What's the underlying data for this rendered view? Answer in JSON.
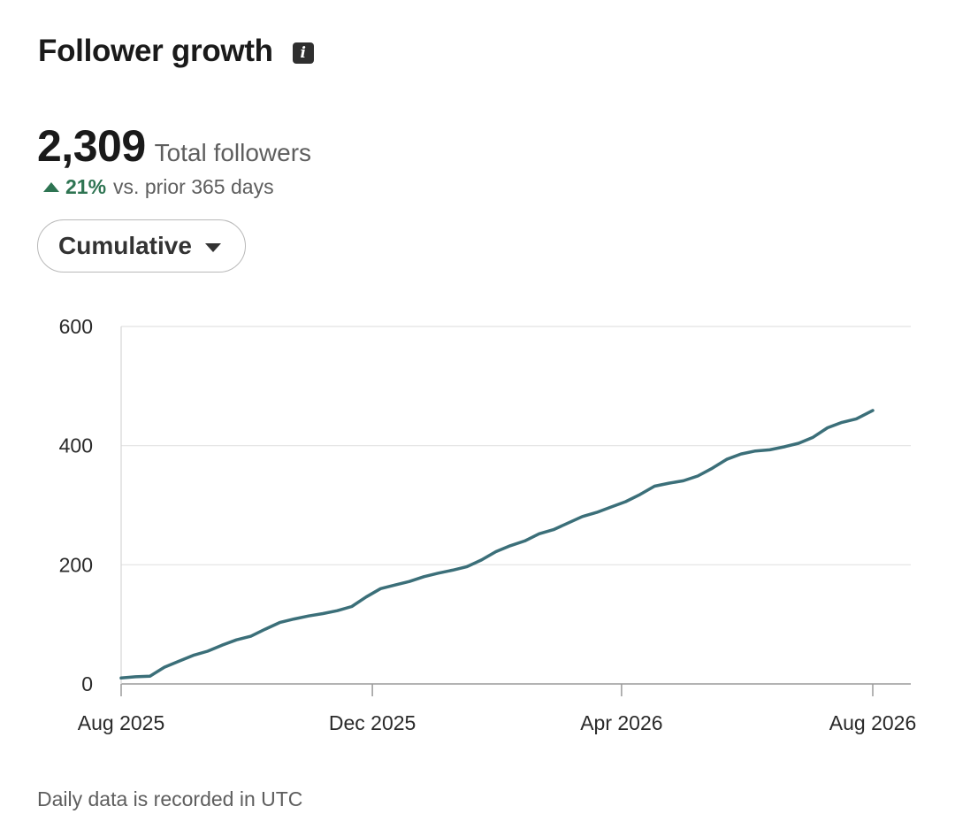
{
  "header": {
    "title": "Follower growth",
    "info_icon": "info-icon"
  },
  "summary": {
    "total": "2,309",
    "total_label": "Total followers",
    "delta_pct": "21%",
    "delta_text": "vs. prior 365 days",
    "delta_color": "#2e7452"
  },
  "view_selector": {
    "label": "Cumulative",
    "icon": "chevron-down-icon"
  },
  "footnote": "Daily data is recorded in UTC",
  "chart_data": {
    "type": "line",
    "title": "",
    "xlabel": "",
    "ylabel": "",
    "ylim": [
      0,
      600
    ],
    "yticks": [
      0,
      200,
      400,
      600
    ],
    "xlim": [
      "2025-08-01",
      "2026-08-01"
    ],
    "xticks": [
      "Aug 2025",
      "Dec 2025",
      "Apr 2026",
      "Aug 2026"
    ],
    "grid": true,
    "line_color": "#3b6f79",
    "series": [
      {
        "values": [
          [
            "2025-08-01",
            10
          ],
          [
            "2025-08-08",
            12
          ],
          [
            "2025-08-15",
            13
          ],
          [
            "2025-08-22",
            28
          ],
          [
            "2025-08-29",
            38
          ],
          [
            "2025-09-05",
            48
          ],
          [
            "2025-09-12",
            55
          ],
          [
            "2025-09-19",
            65
          ],
          [
            "2025-09-26",
            74
          ],
          [
            "2025-10-03",
            80
          ],
          [
            "2025-10-10",
            92
          ],
          [
            "2025-10-17",
            103
          ],
          [
            "2025-10-24",
            109
          ],
          [
            "2025-10-31",
            114
          ],
          [
            "2025-11-07",
            118
          ],
          [
            "2025-11-14",
            123
          ],
          [
            "2025-11-21",
            130
          ],
          [
            "2025-11-28",
            146
          ],
          [
            "2025-12-05",
            160
          ],
          [
            "2025-12-12",
            166
          ],
          [
            "2025-12-19",
            172
          ],
          [
            "2025-12-26",
            180
          ],
          [
            "2026-01-02",
            186
          ],
          [
            "2026-01-09",
            191
          ],
          [
            "2026-01-16",
            197
          ],
          [
            "2026-01-23",
            208
          ],
          [
            "2026-01-30",
            222
          ],
          [
            "2026-02-06",
            232
          ],
          [
            "2026-02-13",
            240
          ],
          [
            "2026-02-20",
            252
          ],
          [
            "2026-02-27",
            259
          ],
          [
            "2026-03-06",
            270
          ],
          [
            "2026-03-13",
            281
          ],
          [
            "2026-03-20",
            288
          ],
          [
            "2026-03-27",
            297
          ],
          [
            "2026-04-03",
            306
          ],
          [
            "2026-04-10",
            318
          ],
          [
            "2026-04-17",
            332
          ],
          [
            "2026-04-24",
            337
          ],
          [
            "2026-05-01",
            341
          ],
          [
            "2026-05-08",
            349
          ],
          [
            "2026-05-15",
            362
          ],
          [
            "2026-05-22",
            377
          ],
          [
            "2026-05-29",
            386
          ],
          [
            "2026-06-05",
            391
          ],
          [
            "2026-06-12",
            393
          ],
          [
            "2026-06-19",
            398
          ],
          [
            "2026-06-26",
            404
          ],
          [
            "2026-07-03",
            414
          ],
          [
            "2026-07-10",
            430
          ],
          [
            "2026-07-17",
            439
          ],
          [
            "2026-07-24",
            445
          ],
          [
            "2026-08-01",
            459
          ]
        ]
      }
    ]
  }
}
